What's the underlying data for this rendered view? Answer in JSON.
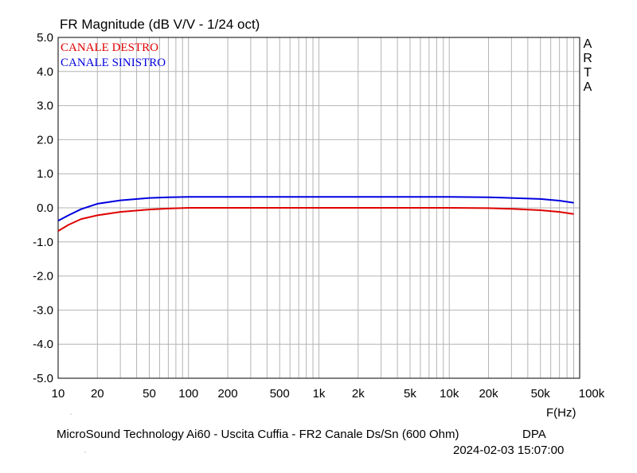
{
  "chart_data": {
    "type": "line",
    "title": "FR Magnitude (dB V/V - 1/24 oct)",
    "xlabel": "F(Hz)",
    "ylabel": "",
    "xscale": "log",
    "xlim": [
      10,
      100000
    ],
    "ylim": [
      -5.0,
      5.0
    ],
    "grid": true,
    "legend": "top-left",
    "x_ticks": [
      {
        "value": 10,
        "label": "10"
      },
      {
        "value": 20,
        "label": "20"
      },
      {
        "value": 50,
        "label": "50"
      },
      {
        "value": 100,
        "label": "100"
      },
      {
        "value": 200,
        "label": "200"
      },
      {
        "value": 500,
        "label": "500"
      },
      {
        "value": 1000,
        "label": "1k"
      },
      {
        "value": 2000,
        "label": "2k"
      },
      {
        "value": 5000,
        "label": "5k"
      },
      {
        "value": 10000,
        "label": "10k"
      },
      {
        "value": 20000,
        "label": "20k"
      },
      {
        "value": 50000,
        "label": "50k"
      },
      {
        "value": 100000,
        "label": "100k"
      }
    ],
    "y_ticks": [
      {
        "value": 5,
        "label": "5.0"
      },
      {
        "value": 4,
        "label": "4.0"
      },
      {
        "value": 3,
        "label": "3.0"
      },
      {
        "value": 2,
        "label": "2.0"
      },
      {
        "value": 1,
        "label": "1.0"
      },
      {
        "value": 0,
        "label": "0.0"
      },
      {
        "value": -1,
        "label": "-1.0"
      },
      {
        "value": -2,
        "label": "-2.0"
      },
      {
        "value": -3,
        "label": "-3.0"
      },
      {
        "value": -4,
        "label": "-4.0"
      },
      {
        "value": -5,
        "label": "-5.0"
      }
    ],
    "series": [
      {
        "name": "CANALE DESTRO",
        "color": "#e00000",
        "points": [
          [
            10,
            -0.68
          ],
          [
            12,
            -0.5
          ],
          [
            15,
            -0.33
          ],
          [
            20,
            -0.22
          ],
          [
            30,
            -0.12
          ],
          [
            50,
            -0.05
          ],
          [
            70,
            -0.02
          ],
          [
            100,
            0.0
          ],
          [
            1000,
            0.0
          ],
          [
            10000,
            0.0
          ],
          [
            20000,
            -0.01
          ],
          [
            30000,
            -0.03
          ],
          [
            50000,
            -0.07
          ],
          [
            70000,
            -0.12
          ],
          [
            90000,
            -0.18
          ]
        ]
      },
      {
        "name": "CANALE SINISTRO",
        "color": "#0000e0",
        "points": [
          [
            10,
            -0.38
          ],
          [
            12,
            -0.22
          ],
          [
            15,
            -0.04
          ],
          [
            20,
            0.12
          ],
          [
            30,
            0.22
          ],
          [
            50,
            0.29
          ],
          [
            70,
            0.31
          ],
          [
            100,
            0.32
          ],
          [
            1000,
            0.32
          ],
          [
            10000,
            0.32
          ],
          [
            20000,
            0.31
          ],
          [
            30000,
            0.29
          ],
          [
            50000,
            0.26
          ],
          [
            70000,
            0.21
          ],
          [
            90000,
            0.15
          ]
        ]
      }
    ]
  },
  "side_label": [
    "A",
    "R",
    "T",
    "A"
  ],
  "footer": {
    "caption": "MicroSound Technology Ai60 - Uscita Cuffia - FR2 Canale Ds/Sn (600 Ohm)",
    "tag": "DPA",
    "timestamp": "2024-02-03  15:07:00"
  }
}
